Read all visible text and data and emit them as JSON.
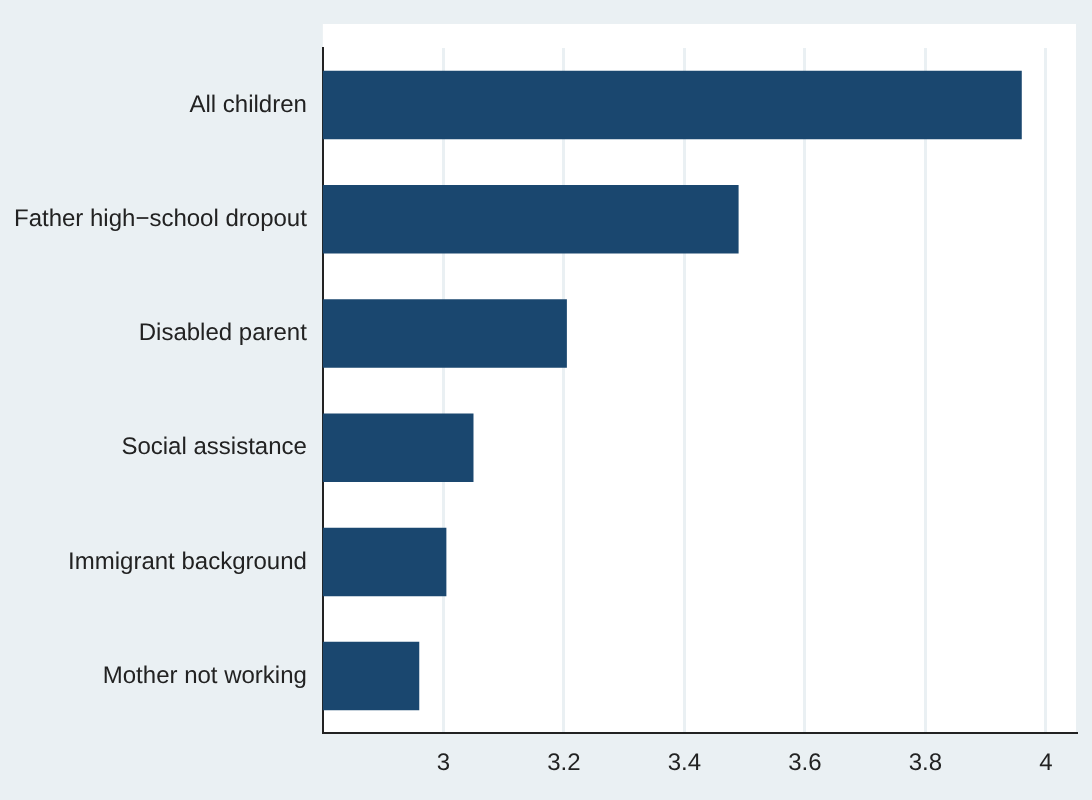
{
  "chart_data": {
    "type": "bar",
    "orientation": "horizontal",
    "categories": [
      "All children",
      "Father high−school dropout",
      "Disabled parent",
      "Social assistance",
      "Immigrant background",
      "Mother not working"
    ],
    "values": [
      3.96,
      3.49,
      3.205,
      3.05,
      3.005,
      2.96
    ],
    "color": "#1a476f",
    "xlim": [
      2.8,
      4.05
    ],
    "xticks": [
      3,
      3.2,
      3.4,
      3.6,
      3.8,
      4
    ],
    "grid": "x",
    "legend": false
  }
}
